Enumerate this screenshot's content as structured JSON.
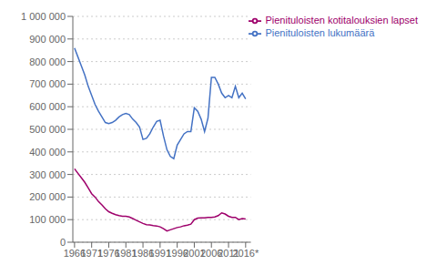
{
  "chart_data": {
    "type": "line",
    "x": [
      1966,
      1967,
      1968,
      1969,
      1970,
      1971,
      1972,
      1973,
      1974,
      1975,
      1976,
      1977,
      1978,
      1979,
      1980,
      1981,
      1982,
      1983,
      1984,
      1985,
      1986,
      1987,
      1988,
      1989,
      1990,
      1991,
      1992,
      1993,
      1994,
      1995,
      1996,
      1997,
      1998,
      1999,
      2000,
      2001,
      2002,
      2003,
      2004,
      2005,
      2006,
      2007,
      2008,
      2009,
      2010,
      2011,
      2012,
      2013,
      2014,
      2015,
      2016
    ],
    "series": [
      {
        "name": "Pienituloisten lukumäärä",
        "color": "#4472C4",
        "values": [
          860000,
          820000,
          780000,
          740000,
          690000,
          650000,
          610000,
          580000,
          555000,
          530000,
          525000,
          530000,
          540000,
          555000,
          565000,
          570000,
          565000,
          545000,
          530000,
          510000,
          455000,
          460000,
          480000,
          510000,
          535000,
          540000,
          470000,
          410000,
          380000,
          370000,
          430000,
          455000,
          480000,
          490000,
          490000,
          595000,
          580000,
          545000,
          490000,
          550000,
          730000,
          730000,
          700000,
          660000,
          640000,
          650000,
          640000,
          690000,
          640000,
          660000,
          635000
        ]
      },
      {
        "name": "Pienituloisten kotitalouksien lapset",
        "color": "#9E006B",
        "values": [
          325000,
          305000,
          285000,
          265000,
          240000,
          215000,
          200000,
          180000,
          165000,
          148000,
          135000,
          128000,
          122000,
          118000,
          115000,
          115000,
          112000,
          105000,
          97000,
          90000,
          83000,
          78000,
          77000,
          74000,
          72000,
          68000,
          60000,
          50000,
          55000,
          60000,
          65000,
          68000,
          73000,
          76000,
          80000,
          100000,
          107000,
          108000,
          108000,
          110000,
          110000,
          112000,
          118000,
          130000,
          125000,
          115000,
          110000,
          110000,
          100000,
          105000,
          103000
        ]
      }
    ],
    "xlim": [
      1965.5,
      2017.5
    ],
    "xticks": [
      1966,
      1971,
      1976,
      1981,
      1986,
      1991,
      1996,
      2001,
      2006,
      2011,
      {
        "value": 2016,
        "label": "2016*"
      }
    ],
    "ylim": [
      0,
      1000000
    ],
    "yticks": [
      0,
      {
        "value": 100000,
        "label": "100 000"
      },
      {
        "value": 200000,
        "label": "200 000"
      },
      {
        "value": 300000,
        "label": "300 000"
      },
      {
        "value": 400000,
        "label": "400 000"
      },
      {
        "value": 500000,
        "label": "500 000"
      },
      {
        "value": 600000,
        "label": "600 000"
      },
      {
        "value": 700000,
        "label": "700 000"
      },
      {
        "value": 800000,
        "label": "800 000"
      },
      {
        "value": 900000,
        "label": "900 000"
      },
      {
        "value": 1000000,
        "label": "1 000 000"
      }
    ],
    "grid": "y",
    "legend": "upper right"
  }
}
